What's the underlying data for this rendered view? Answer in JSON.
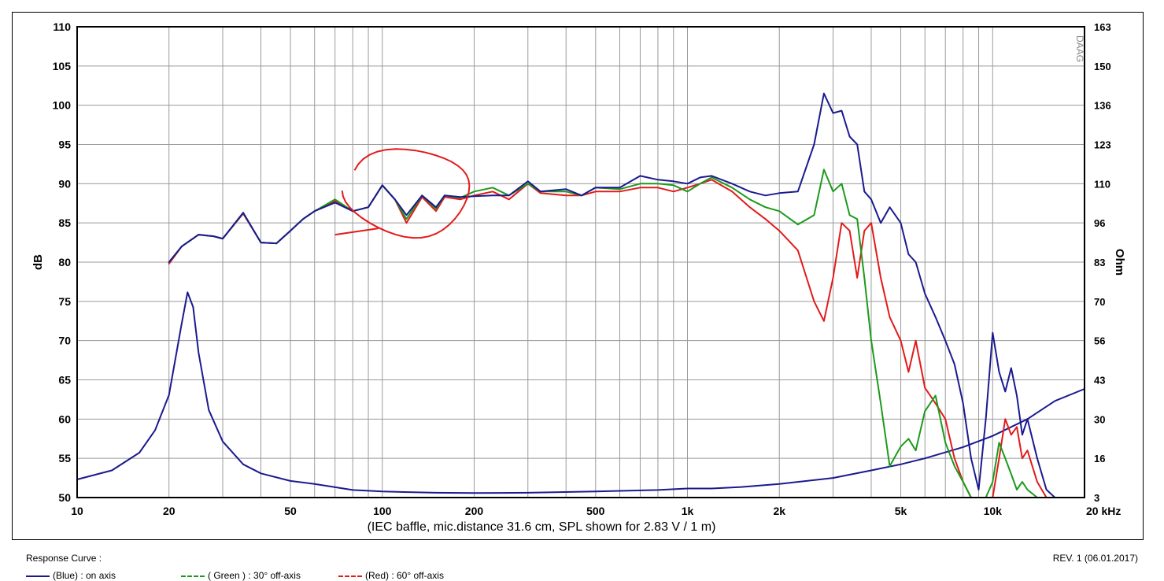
{
  "chart_data": {
    "type": "line",
    "x_unit": "Hz",
    "xlim": [
      10,
      20000
    ],
    "ylim_left": [
      50,
      110
    ],
    "ylabel_left": "dB",
    "ylabel_right": "Ohm",
    "right_axis_ticks": [
      "163",
      "150",
      "136",
      "123",
      "110",
      "96",
      "83",
      "70",
      "56",
      "43",
      "30",
      "16",
      "3"
    ],
    "left_axis_ticks": [
      "110",
      "105",
      "100",
      "95",
      "90",
      "85",
      "80",
      "75",
      "70",
      "65",
      "60",
      "55",
      "50"
    ],
    "x_ticks": [
      {
        "v": 10,
        "label": "10"
      },
      {
        "v": 20,
        "label": "20"
      },
      {
        "v": 50,
        "label": "50"
      },
      {
        "v": 100,
        "label": "100"
      },
      {
        "v": 200,
        "label": "200"
      },
      {
        "v": 500,
        "label": "500"
      },
      {
        "v": 1000,
        "label": "1k"
      },
      {
        "v": 2000,
        "label": "2k"
      },
      {
        "v": 5000,
        "label": "5k"
      },
      {
        "v": 10000,
        "label": "10k"
      },
      {
        "v": 20000,
        "label": "20 kHz"
      }
    ],
    "xlabel": "(IEC baffle, mic.distance 31.6 cm, SPL shown for 2.83 V / 1 m)",
    "grid": true,
    "series": [
      {
        "name": "(Blue) : on axis",
        "color": "#1a1a8f",
        "axis": "left",
        "x": [
          20,
          22,
          25,
          28,
          30,
          35,
          40,
          45,
          50,
          55,
          60,
          70,
          80,
          90,
          100,
          110,
          120,
          135,
          150,
          160,
          180,
          200,
          230,
          260,
          300,
          330,
          400,
          450,
          500,
          600,
          700,
          800,
          900,
          1000,
          1100,
          1200,
          1400,
          1600,
          1800,
          2000,
          2300,
          2600,
          2800,
          3000,
          3200,
          3400,
          3600,
          3800,
          4000,
          4300,
          4600,
          5000,
          5300,
          5600,
          6000,
          6500,
          7000,
          7500,
          8000,
          8500,
          9000,
          9500,
          10000,
          10500,
          11000,
          11500,
          12000,
          12500,
          13000,
          14000,
          15000,
          16000,
          17000,
          18000,
          19000,
          20000
        ],
        "y": [
          80,
          82,
          83.5,
          83.3,
          83,
          86.3,
          82.5,
          82.4,
          84,
          85.5,
          86.5,
          87.6,
          86.5,
          87,
          89.8,
          88,
          86,
          88.5,
          87,
          88.5,
          88.3,
          88.4,
          88.5,
          88.5,
          90.3,
          89,
          89.3,
          88.5,
          89.5,
          89.5,
          91,
          90.5,
          90.3,
          90,
          90.8,
          91,
          90,
          89,
          88.5,
          88.8,
          89,
          95,
          101.5,
          99,
          99.3,
          96,
          95,
          89,
          88,
          85,
          87,
          85,
          81,
          80,
          76,
          73,
          70,
          67,
          62,
          55,
          51,
          60,
          71,
          66,
          63.5,
          66.5,
          63,
          58,
          60,
          55,
          51,
          50,
          50,
          50,
          50,
          50
        ]
      },
      {
        "name": "( Green ) : 30° off-axis",
        "color": "#1c9a1c",
        "axis": "left",
        "x": [
          20,
          22,
          25,
          28,
          30,
          35,
          40,
          45,
          50,
          55,
          60,
          70,
          80,
          90,
          100,
          110,
          120,
          135,
          150,
          160,
          180,
          200,
          230,
          260,
          300,
          330,
          400,
          450,
          500,
          600,
          700,
          800,
          900,
          1000,
          1100,
          1200,
          1400,
          1600,
          1800,
          2000,
          2300,
          2600,
          2800,
          3000,
          3200,
          3400,
          3600,
          3800,
          4000,
          4300,
          4600,
          5000,
          5300,
          5600,
          6000,
          6500,
          7000,
          7500,
          8000,
          8500,
          9000,
          9500,
          10000,
          10500,
          11000,
          11500,
          12000,
          12500,
          13000,
          14000,
          15000,
          16000,
          17000,
          18000,
          19000,
          20000
        ],
        "y": [
          80,
          82,
          83.5,
          83.3,
          83,
          86.3,
          82.5,
          82.4,
          84,
          85.5,
          86.5,
          88,
          86.5,
          87,
          89.8,
          88,
          85.5,
          88.5,
          86.8,
          88.5,
          88.2,
          89,
          89.5,
          88.5,
          90,
          89,
          89,
          88.5,
          89.5,
          89.3,
          90,
          90,
          89.8,
          89,
          90,
          90.8,
          89.5,
          88,
          87,
          86.5,
          84.8,
          86,
          91.8,
          89,
          90,
          86,
          85.5,
          78,
          70,
          62,
          54,
          56.5,
          57.5,
          56,
          61,
          63,
          57,
          54,
          52,
          50,
          50,
          50,
          52,
          57,
          55,
          53,
          51,
          52,
          51,
          50,
          50,
          50,
          50,
          50,
          50,
          50
        ]
      },
      {
        "name": "(Red) : 60° off-axis",
        "color": "#e31a1a",
        "axis": "left",
        "x": [
          20,
          22,
          25,
          28,
          30,
          35,
          40,
          45,
          50,
          55,
          60,
          70,
          80,
          90,
          100,
          110,
          120,
          135,
          150,
          160,
          180,
          200,
          230,
          260,
          300,
          330,
          400,
          450,
          500,
          600,
          700,
          800,
          900,
          1000,
          1100,
          1200,
          1400,
          1600,
          1800,
          2000,
          2300,
          2600,
          2800,
          3000,
          3200,
          3400,
          3600,
          3800,
          4000,
          4300,
          4600,
          5000,
          5300,
          5600,
          6000,
          6500,
          7000,
          7500,
          8000,
          8500,
          9000,
          9500,
          10000,
          10500,
          11000,
          11500,
          12000,
          12500,
          13000,
          14000,
          15000,
          16000,
          17000,
          18000,
          19000,
          20000
        ],
        "y": [
          79.8,
          82,
          83.5,
          83.3,
          83,
          86.2,
          82.5,
          82.4,
          84,
          85.5,
          86.5,
          87.8,
          86.5,
          87,
          89.8,
          88,
          85,
          88.3,
          86.5,
          88.3,
          88,
          88.5,
          89,
          88,
          90,
          88.8,
          88.5,
          88.5,
          89,
          89,
          89.5,
          89.5,
          89,
          89.5,
          90,
          90.5,
          89,
          87,
          85.5,
          84,
          81.5,
          75,
          72.5,
          78,
          85,
          84,
          78,
          84,
          85,
          78,
          73,
          70,
          66,
          70,
          64,
          62,
          60,
          55,
          52,
          50,
          50,
          50,
          50,
          55,
          60,
          58,
          59,
          55,
          56,
          52,
          50,
          50,
          50,
          50,
          50,
          50
        ]
      },
      {
        "name": "impedance",
        "color": "#1a1a8f",
        "axis": "right",
        "x": [
          10,
          13,
          16,
          18,
          20,
          22,
          23,
          24,
          25,
          27,
          30,
          35,
          40,
          50,
          60,
          80,
          100,
          150,
          200,
          300,
          500,
          800,
          1000,
          1200,
          1500,
          2000,
          3000,
          4000,
          5000,
          6000,
          8000,
          10000,
          13000,
          16000,
          20000
        ],
        "y": [
          9,
          12,
          18,
          26,
          38,
          62,
          73,
          68,
          52,
          33,
          22,
          14,
          11,
          8.5,
          7.5,
          5.5,
          5,
          4.6,
          4.5,
          4.6,
          5,
          5.5,
          6,
          6,
          6.5,
          7.5,
          9.5,
          12,
          14,
          16,
          20,
          24,
          30,
          36,
          40
        ]
      }
    ],
    "annotations": [
      "freehand-circle"
    ]
  },
  "page_title": "",
  "chart_id_mark": "DAAG",
  "footer": {
    "response_curve_label": "Response Curve :",
    "revision": "REV. 1 (06.01.2017)",
    "legend": [
      {
        "text": "(Blue)  : on axis",
        "color": "#1a1a8f",
        "style": "solid"
      },
      {
        "text": "( Green ) : 30° off-axis",
        "color": "#1c9a1c",
        "style": "dashed"
      },
      {
        "text": "(Red) : 60° off-axis",
        "color": "#e31a1a",
        "style": "dashed"
      }
    ]
  }
}
